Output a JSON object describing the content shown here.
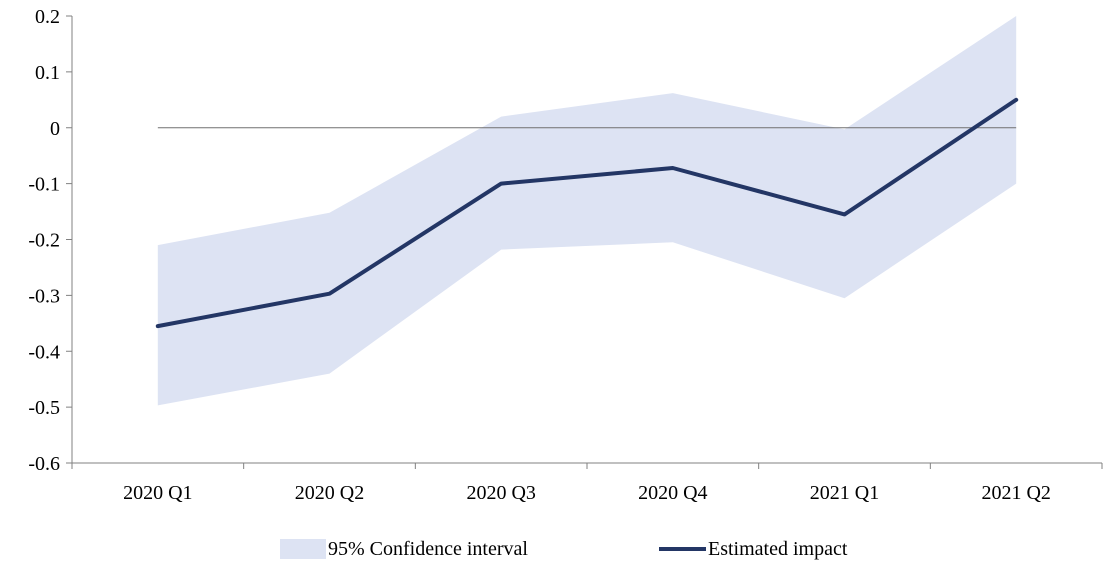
{
  "chart_data": {
    "type": "line",
    "title": "",
    "xlabel": "",
    "ylabel": "",
    "categories": [
      "2020 Q1",
      "2020 Q2",
      "2020 Q3",
      "2020 Q4",
      "2021 Q1",
      "2021 Q2"
    ],
    "series": [
      {
        "name": "Estimated impact",
        "values": [
          -0.355,
          -0.297,
          -0.1,
          -0.072,
          -0.155,
          0.05
        ]
      }
    ],
    "confidence_band": {
      "name": "95% Confidence interval",
      "lower": [
        -0.497,
        -0.44,
        -0.218,
        -0.205,
        -0.305,
        -0.1
      ],
      "upper": [
        -0.21,
        -0.152,
        0.02,
        0.062,
        -0.003,
        0.2
      ]
    },
    "ylim": [
      -0.6,
      0.2
    ],
    "yticks": [
      0.2,
      0.1,
      0,
      -0.1,
      -0.2,
      -0.3,
      -0.4,
      -0.5,
      -0.6
    ],
    "ytick_labels": [
      "0.2",
      "0.1",
      "0",
      "-0.1",
      "-0.2",
      "-0.3",
      "-0.4",
      "-0.5",
      "-0.6"
    ],
    "zero_line": true,
    "grid": false,
    "legend_position": "bottom",
    "colors": {
      "band": "#dde3f3",
      "line": "#233665",
      "axis": "#808080",
      "zero_line": "#707070"
    }
  }
}
